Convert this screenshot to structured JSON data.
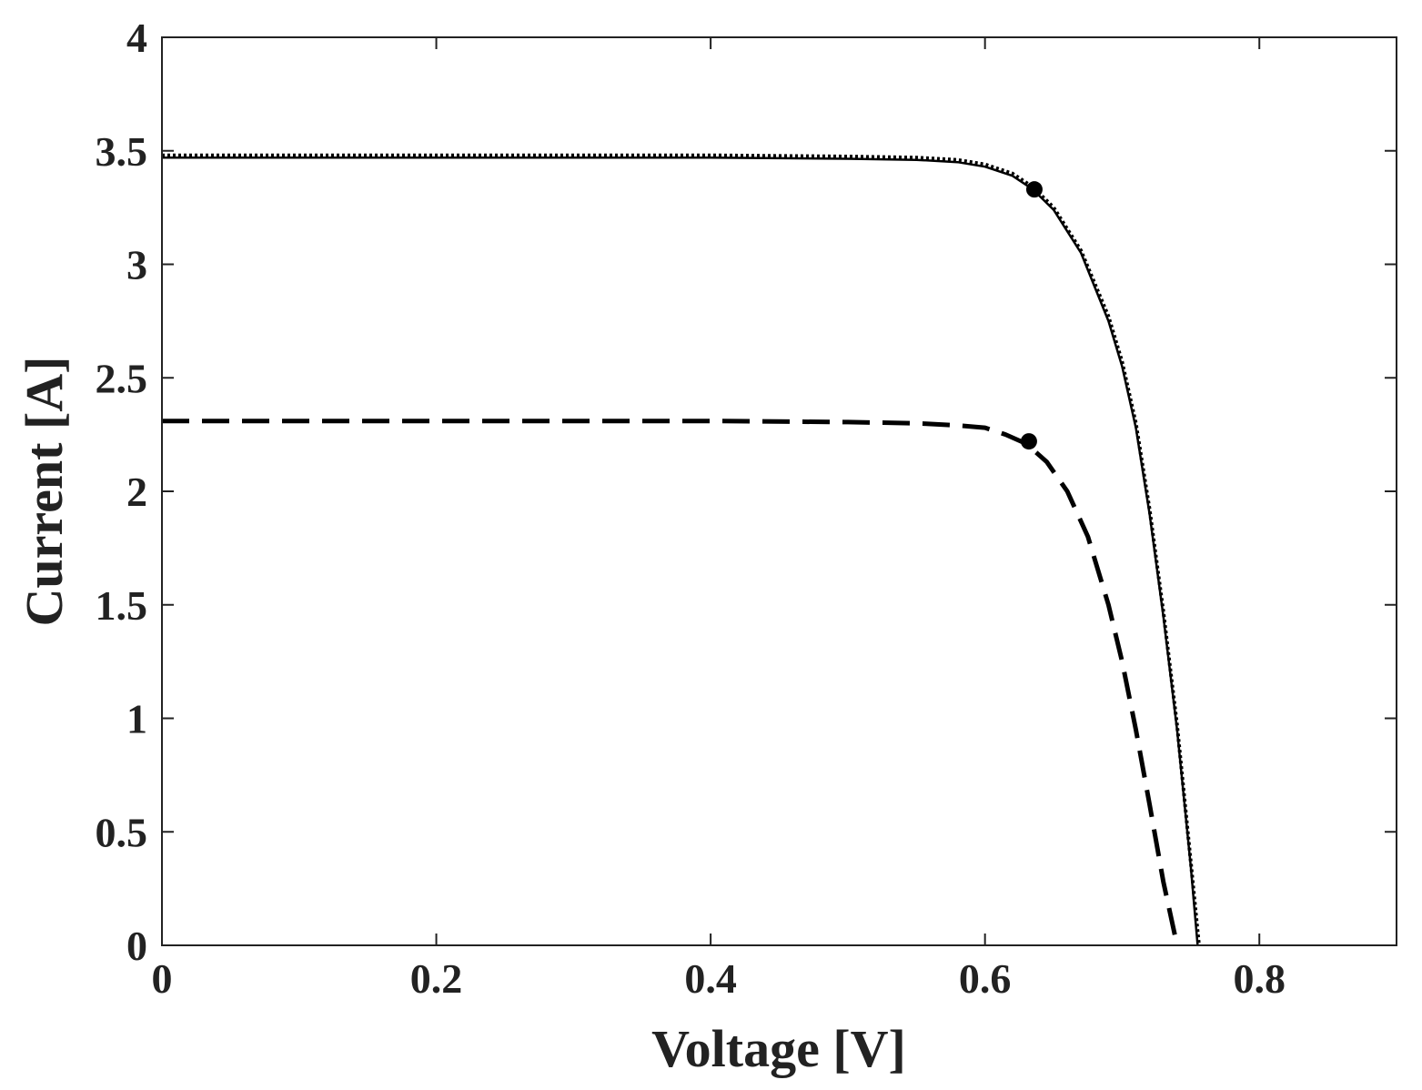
{
  "chart_data": {
    "type": "line",
    "xlabel": "Voltage [V]",
    "ylabel": "Current [A]",
    "xlim": [
      0,
      0.9
    ],
    "ylim": [
      0,
      4
    ],
    "x_ticks": [
      0,
      0.2,
      0.4,
      0.6,
      0.8
    ],
    "x_tick_labels": [
      "0",
      "0.2",
      "0.4",
      "0.6",
      "0.8"
    ],
    "y_ticks": [
      0,
      0.5,
      1,
      1.5,
      2,
      2.5,
      3,
      3.5,
      4
    ],
    "y_tick_labels": [
      "0",
      "0.5",
      "1",
      "1.5",
      "2",
      "2.5",
      "3",
      "3.5",
      "4"
    ],
    "grid": false,
    "legend": "none",
    "series": [
      {
        "style": "solid",
        "color": "#000000",
        "x": [
          0,
          0.1,
          0.2,
          0.3,
          0.4,
          0.5,
          0.55,
          0.58,
          0.6,
          0.62,
          0.635,
          0.65,
          0.67,
          0.69,
          0.7,
          0.71,
          0.72,
          0.73,
          0.74,
          0.75,
          0.755
        ],
        "y": [
          3.47,
          3.47,
          3.47,
          3.47,
          3.47,
          3.465,
          3.46,
          3.45,
          3.43,
          3.39,
          3.33,
          3.24,
          3.05,
          2.75,
          2.55,
          2.28,
          1.9,
          1.45,
          0.95,
          0.35,
          0.0
        ]
      },
      {
        "style": "dotted",
        "color": "#000000",
        "x": [
          0,
          0.1,
          0.2,
          0.3,
          0.4,
          0.5,
          0.55,
          0.58,
          0.6,
          0.62,
          0.635,
          0.65,
          0.67,
          0.69,
          0.7,
          0.71,
          0.72,
          0.73,
          0.74,
          0.75,
          0.756
        ],
        "y": [
          3.48,
          3.48,
          3.48,
          3.48,
          3.48,
          3.475,
          3.47,
          3.46,
          3.44,
          3.4,
          3.34,
          3.25,
          3.06,
          2.77,
          2.57,
          2.3,
          1.92,
          1.47,
          0.97,
          0.37,
          0.0
        ]
      },
      {
        "style": "dashed",
        "color": "#000000",
        "x": [
          0,
          0.1,
          0.2,
          0.3,
          0.4,
          0.5,
          0.55,
          0.58,
          0.6,
          0.615,
          0.63,
          0.645,
          0.66,
          0.675,
          0.69,
          0.7,
          0.71,
          0.72,
          0.73,
          0.74
        ],
        "y": [
          2.31,
          2.31,
          2.31,
          2.31,
          2.31,
          2.305,
          2.3,
          2.29,
          2.28,
          2.25,
          2.21,
          2.13,
          2.0,
          1.8,
          1.5,
          1.25,
          0.95,
          0.62,
          0.28,
          0.0
        ]
      }
    ],
    "markers": [
      {
        "x": 0.636,
        "y": 3.33
      },
      {
        "x": 0.632,
        "y": 2.22
      }
    ]
  }
}
